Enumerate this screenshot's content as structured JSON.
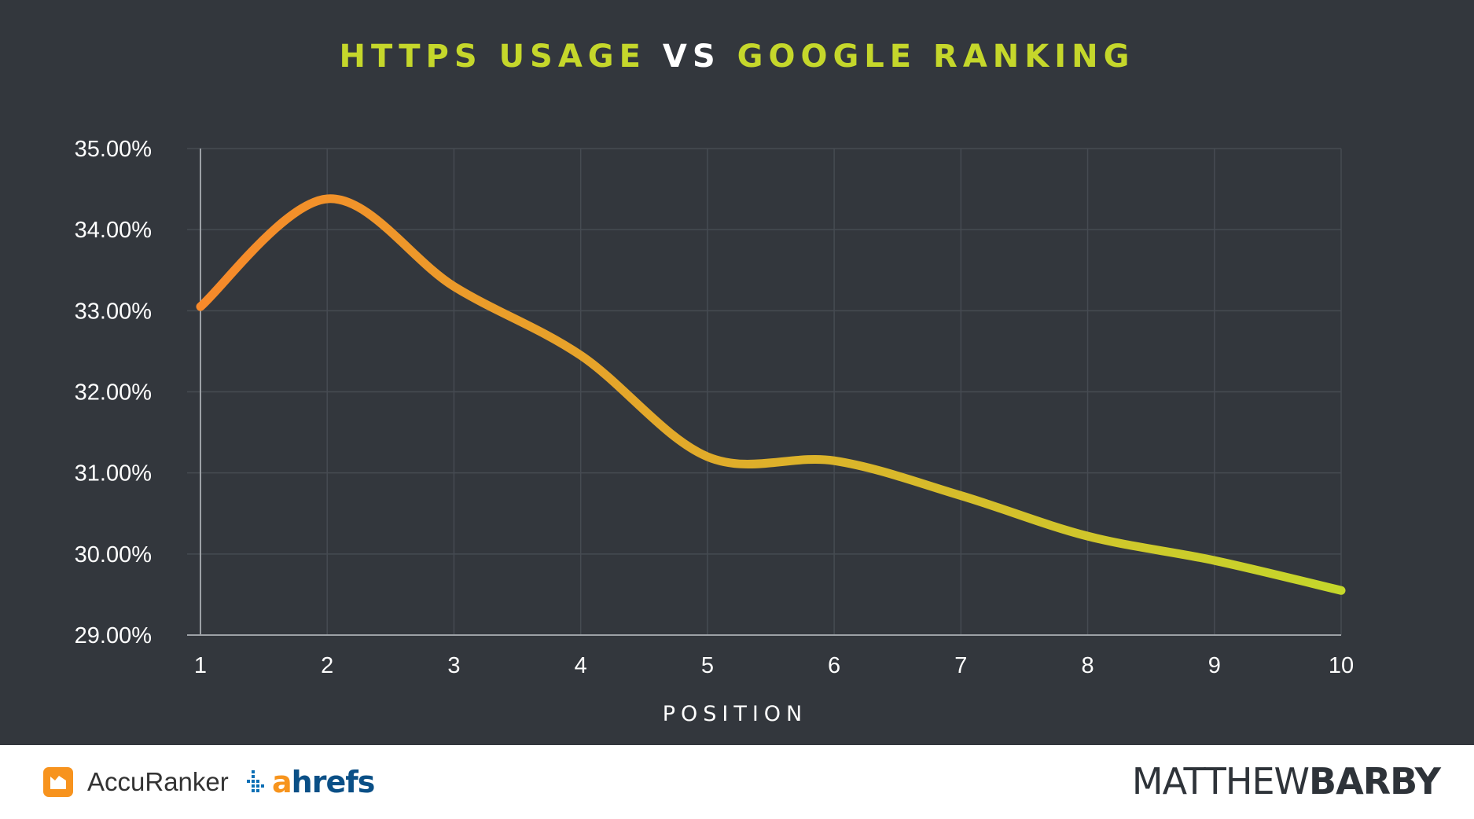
{
  "chart_data": {
    "type": "line",
    "title_parts": [
      "HTTPS USAGE",
      "VS",
      "GOOGLE RANKING"
    ],
    "xlabel": "POSITION",
    "ylabel": "",
    "x": [
      1,
      2,
      3,
      4,
      5,
      6,
      7,
      8,
      9,
      10
    ],
    "x_tick_labels": [
      "1",
      "2",
      "3",
      "4",
      "5",
      "6",
      "7",
      "8",
      "9",
      "10"
    ],
    "y_tick_labels": [
      "35.00%",
      "34.00%",
      "33.00%",
      "32.00%",
      "31.00%",
      "30.00%",
      "29.00%"
    ],
    "y_ticks": [
      35,
      34,
      33,
      32,
      31,
      30,
      29
    ],
    "ylim": [
      29,
      35
    ],
    "xlim": [
      1,
      10
    ],
    "series": [
      {
        "values": [
          33.05,
          34.38,
          33.3,
          32.45,
          31.2,
          31.15,
          30.72,
          30.22,
          29.92,
          29.55
        ]
      }
    ],
    "gradient": [
      "#f7892a",
      "#c5d72b"
    ],
    "grid": true,
    "colors": {
      "background": "#33373d",
      "gridline": "#464b52",
      "axis": "#9da1a6",
      "tick_text": "#ffffff",
      "title_accent": "#c5d72b",
      "title_mid": "#ffffff"
    }
  },
  "footer": {
    "accuranker": "AccuRanker",
    "ahrefs_a": "a",
    "ahrefs_rest": "hrefs",
    "author_thin": "MATTHEW",
    "author_bold": "BARBY"
  }
}
